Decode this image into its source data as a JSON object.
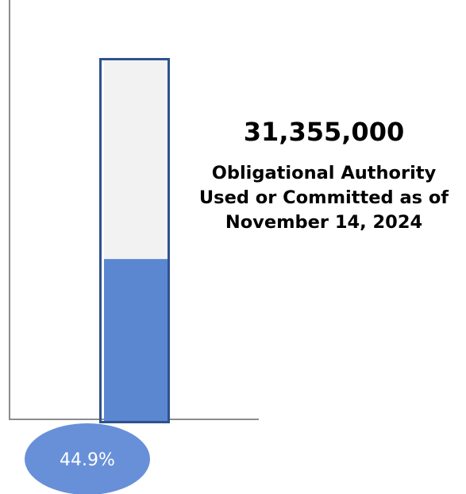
{
  "chart_data": {
    "type": "bar",
    "orientation": "vertical-thermometer",
    "percent_label": "44.9%",
    "percent_value": 44.9,
    "ylim": [
      0,
      100
    ],
    "amount_label": "31,355,000",
    "amount_value": 31355000,
    "caption": "Obligational Authority Used or Committed as of November 14, 2024",
    "grid": false,
    "colors": {
      "fill": "#5b87d1",
      "empty": "#f2f2f2",
      "border": "#2f528f",
      "badge": "#6790d8",
      "badge_text": "#ffffff",
      "axis": "#8c8c8c"
    }
  }
}
